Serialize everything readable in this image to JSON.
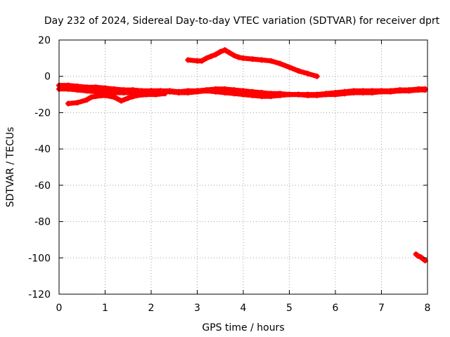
{
  "chart_data": {
    "type": "scatter",
    "title": "Day 232 of 2024, Sidereal Day-to-day VTEC variation (SDTVAR) for receiver dprt",
    "xlabel": "GPS time / hours",
    "ylabel": "SDTVAR / TECUs",
    "xlim": [
      0,
      8
    ],
    "ylim": [
      -120,
      20
    ],
    "xticks": [
      0,
      1,
      2,
      3,
      4,
      5,
      6,
      7,
      8
    ],
    "yticks": [
      20,
      0,
      -20,
      -40,
      -60,
      -80,
      -100,
      -120
    ],
    "grid": true,
    "color": "#ff0000",
    "series": [
      {
        "x": [
          0.0,
          0.2,
          0.4,
          0.6,
          0.8,
          1.0,
          1.2,
          1.4,
          1.6,
          1.8,
          2.0,
          2.2,
          2.4,
          2.6,
          2.8,
          3.0,
          3.2,
          3.4,
          3.6,
          3.8,
          4.0,
          4.2,
          4.4,
          4.6,
          4.8,
          5.0,
          5.2,
          5.4,
          5.6,
          5.8,
          6.0,
          6.2,
          6.4,
          6.6,
          6.8,
          7.0,
          7.2,
          7.4,
          7.6,
          7.8,
          7.95
        ],
        "y": [
          -5,
          -5,
          -5.5,
          -6,
          -6,
          -6.5,
          -7,
          -7.5,
          -7.5,
          -8,
          -8,
          -8,
          -8,
          -8.5,
          -8,
          -8,
          -7.5,
          -7,
          -7,
          -7.5,
          -8,
          -8.5,
          -9,
          -9.5,
          -9.5,
          -10,
          -10,
          -10,
          -10,
          -9.5,
          -9,
          -8.5,
          -8,
          -8,
          -8,
          -8,
          -8,
          -7.5,
          -7.5,
          -7,
          -7
        ]
      },
      {
        "x": [
          0.0,
          0.2,
          0.4,
          0.6,
          0.8,
          1.0,
          1.2,
          1.4,
          1.6,
          1.8,
          2.0,
          2.2,
          2.4,
          2.6,
          2.8,
          3.0,
          3.2,
          3.4,
          3.6,
          3.8,
          4.0,
          4.2,
          4.4,
          4.6,
          4.8,
          5.0,
          5.2,
          5.4,
          5.6,
          5.8,
          6.0,
          6.2,
          6.4,
          6.6,
          6.8,
          7.0,
          7.2,
          7.4,
          7.6,
          7.8,
          7.95
        ],
        "y": [
          -7,
          -7,
          -7.5,
          -8,
          -8.5,
          -8.5,
          -9,
          -9,
          -9,
          -8.5,
          -8,
          -8,
          -8.5,
          -9,
          -9,
          -8.5,
          -8,
          -8.5,
          -9,
          -9.5,
          -10,
          -10.5,
          -11,
          -11,
          -10.5,
          -10,
          -10,
          -10.5,
          -10.5,
          -10,
          -10,
          -9.5,
          -9,
          -9,
          -9,
          -8.5,
          -8.5,
          -8,
          -8,
          -7.5,
          -7.5
        ]
      },
      {
        "x": [
          0.2,
          0.4,
          0.6,
          0.7,
          0.8,
          1.0,
          1.2,
          1.35,
          1.5,
          1.7,
          1.9,
          2.1,
          2.3
        ],
        "y": [
          -15,
          -14.5,
          -13,
          -11.5,
          -11,
          -10.5,
          -11.5,
          -13.5,
          -12,
          -10.5,
          -10,
          -10,
          -9.5
        ]
      },
      {
        "x": [
          2.8,
          3.0,
          3.1,
          3.2,
          3.3,
          3.4,
          3.5,
          3.6,
          3.7,
          3.8,
          3.9,
          4.0,
          4.2,
          4.4,
          4.6,
          4.8,
          5.0,
          5.2,
          5.4,
          5.6
        ],
        "y": [
          9,
          8.5,
          8.5,
          10,
          11,
          12,
          13.5,
          14.5,
          13,
          11.5,
          10.5,
          10,
          9.5,
          9,
          8.5,
          7,
          5,
          3,
          1.5,
          0
        ]
      },
      {
        "x": [
          7.75,
          7.8,
          7.85,
          7.9,
          7.95
        ],
        "y": [
          -98,
          -99,
          -99.5,
          -100.5,
          -101.5
        ]
      }
    ]
  }
}
